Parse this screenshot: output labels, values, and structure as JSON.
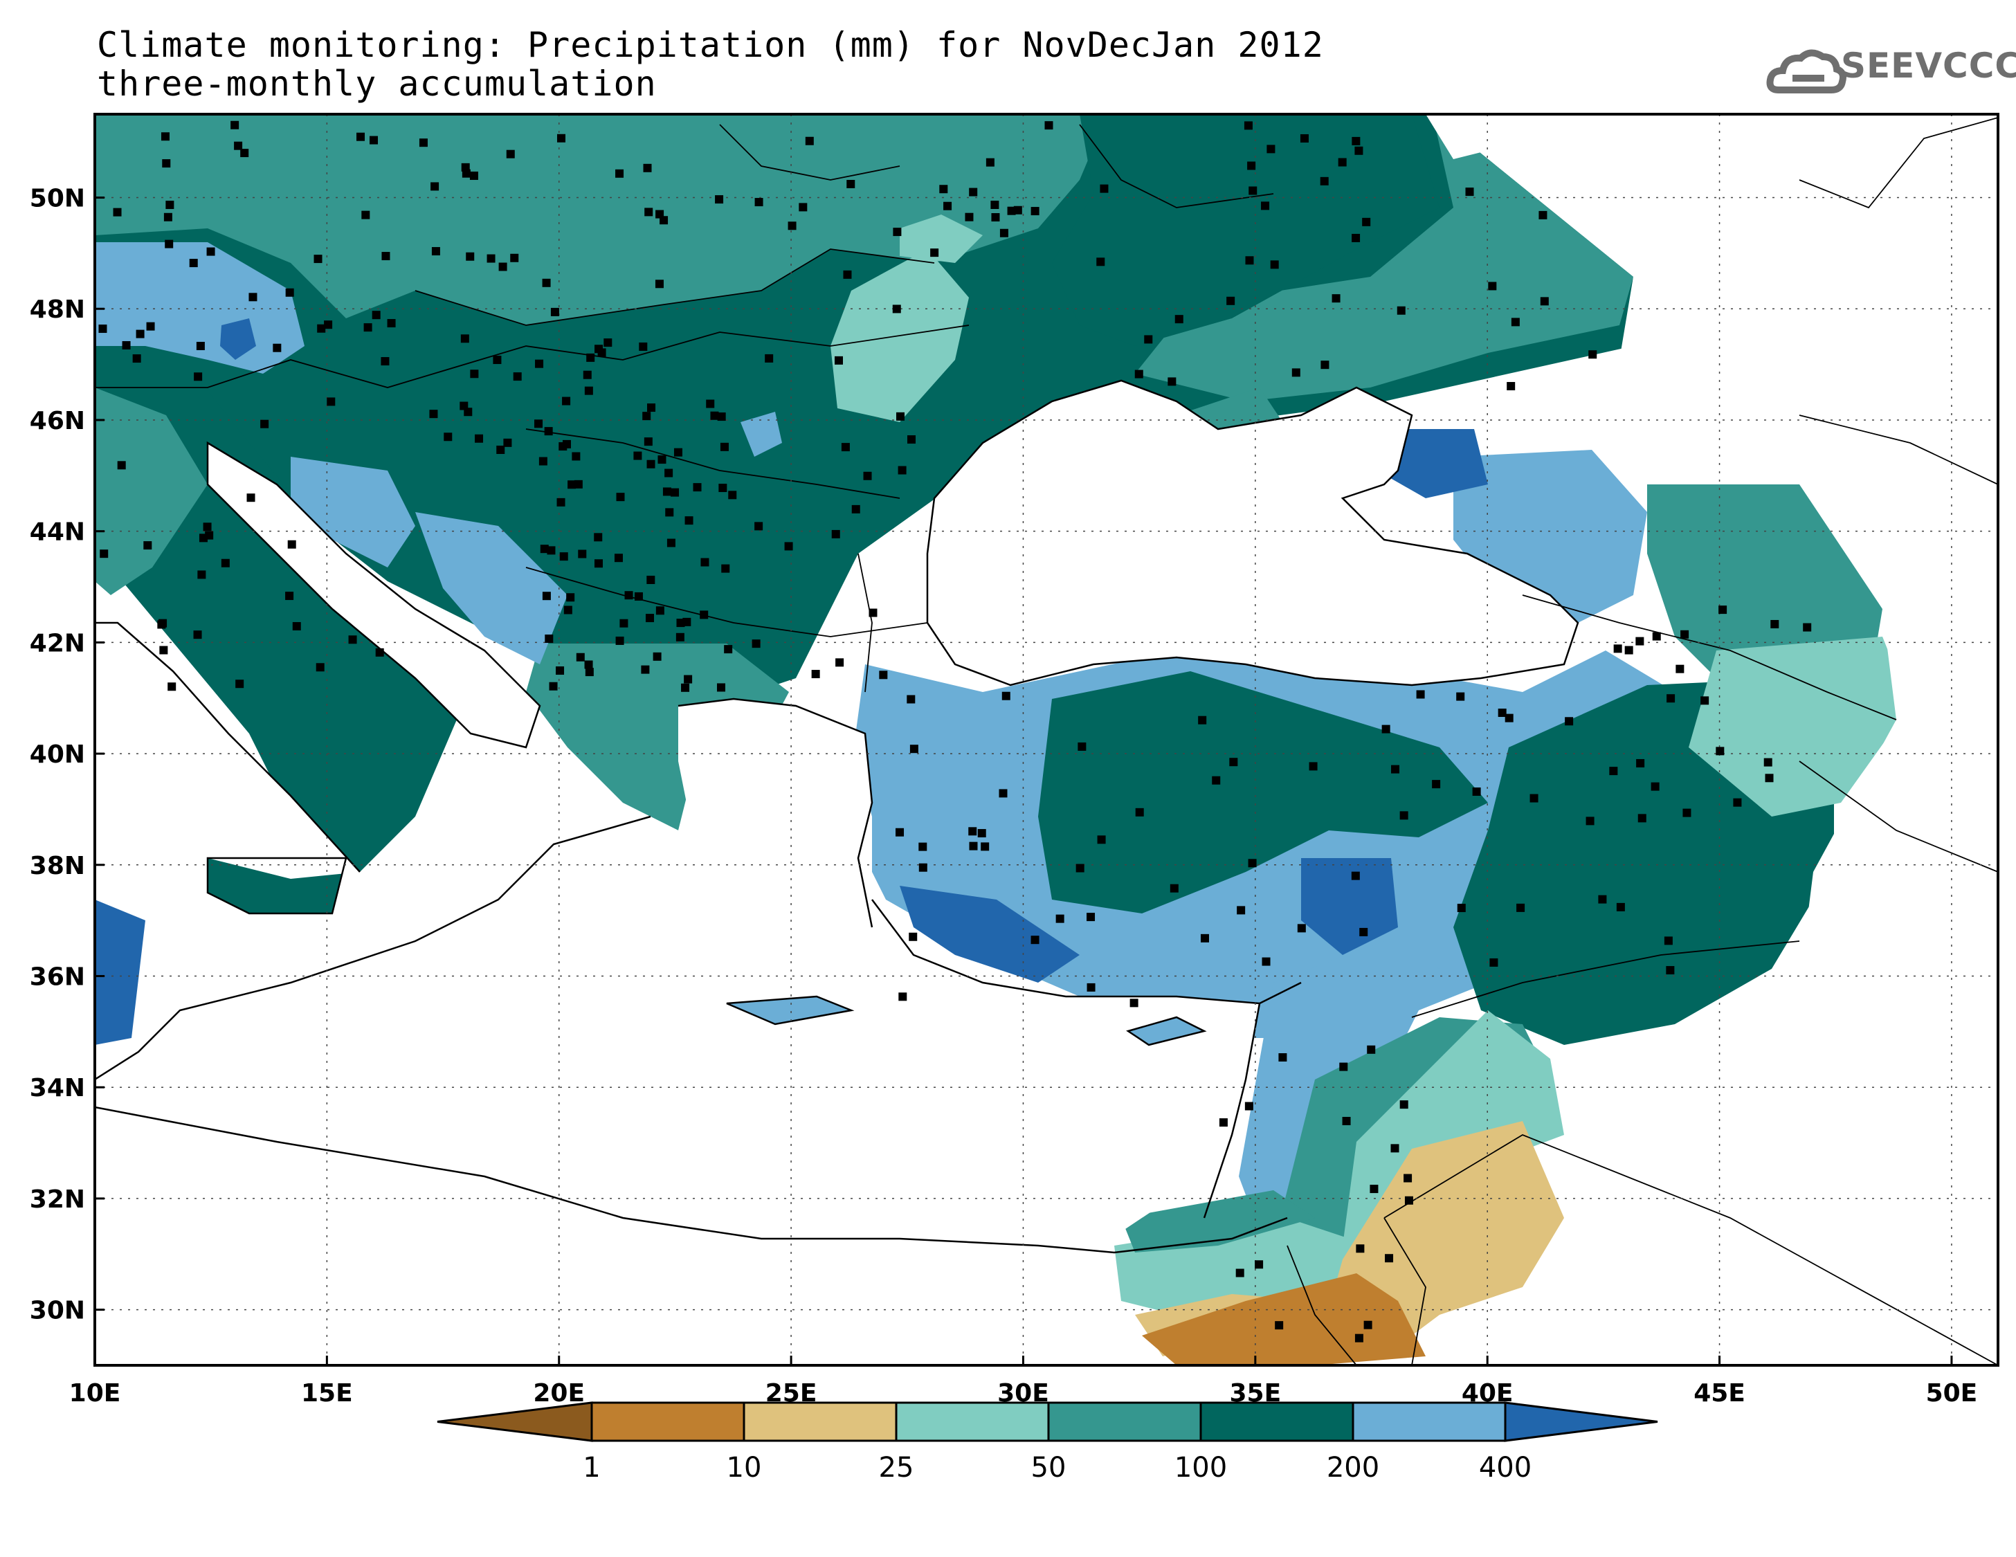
{
  "title": "Climate monitoring: Precipitation (mm) for NovDecJan 2012",
  "subtitle": "three-monthly accumulation",
  "logo_text": "SEEVCCC",
  "map": {
    "lon_range": [
      10,
      51
    ],
    "lat_range": [
      29,
      51.5
    ],
    "lon_ticks": [
      "10E",
      "15E",
      "20E",
      "25E",
      "30E",
      "35E",
      "40E",
      "45E",
      "50E"
    ],
    "lat_ticks": [
      "30N",
      "32N",
      "34N",
      "36N",
      "38N",
      "40N",
      "42N",
      "44N",
      "46N",
      "48N",
      "50N"
    ],
    "grid": "dotted"
  },
  "colorbar": {
    "labels": [
      "1",
      "10",
      "25",
      "50",
      "100",
      "200",
      "400"
    ],
    "colors": [
      "#8b5a1e",
      "#bf7f2f",
      "#dfc27d",
      "#80cdc1",
      "#35978f",
      "#01665e",
      "#6baed6",
      "#2166ac"
    ]
  }
}
